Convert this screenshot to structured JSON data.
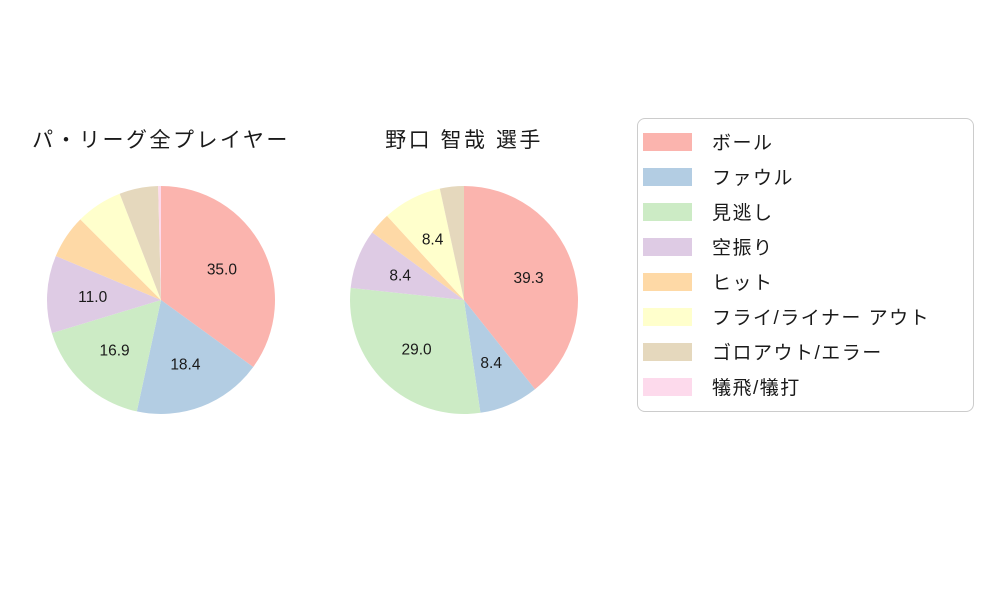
{
  "figure": {
    "background_color": "#ffffff",
    "text_color": "#1a1a1a"
  },
  "legend": {
    "border_color": "#cccccc",
    "items": [
      {
        "label": "ボール",
        "color": "#fbb4ae"
      },
      {
        "label": "ファウル",
        "color": "#b3cde3"
      },
      {
        "label": "見逃し",
        "color": "#ccebc5"
      },
      {
        "label": "空振り",
        "color": "#decbe4"
      },
      {
        "label": "ヒット",
        "color": "#fed9a6"
      },
      {
        "label": "フライ/ライナー アウト",
        "color": "#ffffcc"
      },
      {
        "label": "ゴロアウト/エラー",
        "color": "#e5d8bd"
      },
      {
        "label": "犠飛/犠打",
        "color": "#fddaec"
      }
    ]
  },
  "chart_data": [
    {
      "type": "pie",
      "title": "パ・リーグ全プレイヤー",
      "categories": [
        "ボール",
        "ファウル",
        "見逃し",
        "空振り",
        "ヒット",
        "フライ/ライナー アウト",
        "ゴロアウト/エラー",
        "犠飛/犠打"
      ],
      "values": [
        35.0,
        18.4,
        16.9,
        11.0,
        6.2,
        6.6,
        5.5,
        0.4
      ],
      "value_labels": [
        "35.0",
        "18.4",
        "16.9",
        "11.0",
        null,
        null,
        null,
        null
      ],
      "colors": [
        "#fbb4ae",
        "#b3cde3",
        "#ccebc5",
        "#decbe4",
        "#fed9a6",
        "#ffffcc",
        "#e5d8bd",
        "#fddaec"
      ],
      "start_angle": "top",
      "direction": "clockwise",
      "label_distance": 0.6
    },
    {
      "type": "pie",
      "title": "野口 智哉 選手",
      "categories": [
        "ボール",
        "ファウル",
        "見逃し",
        "空振り",
        "ヒット",
        "フライ/ライナー アウト",
        "ゴロアウト/エラー",
        "犠飛/犠打"
      ],
      "values": [
        39.3,
        8.4,
        29.0,
        8.4,
        3.1,
        8.4,
        3.4,
        0.0
      ],
      "value_labels": [
        "39.3",
        "8.4",
        "29.0",
        "8.4",
        null,
        "8.4",
        null,
        null
      ],
      "colors": [
        "#fbb4ae",
        "#b3cde3",
        "#ccebc5",
        "#decbe4",
        "#fed9a6",
        "#ffffcc",
        "#e5d8bd",
        "#fddaec"
      ],
      "start_angle": "top",
      "direction": "clockwise",
      "label_distance": 0.6
    }
  ]
}
